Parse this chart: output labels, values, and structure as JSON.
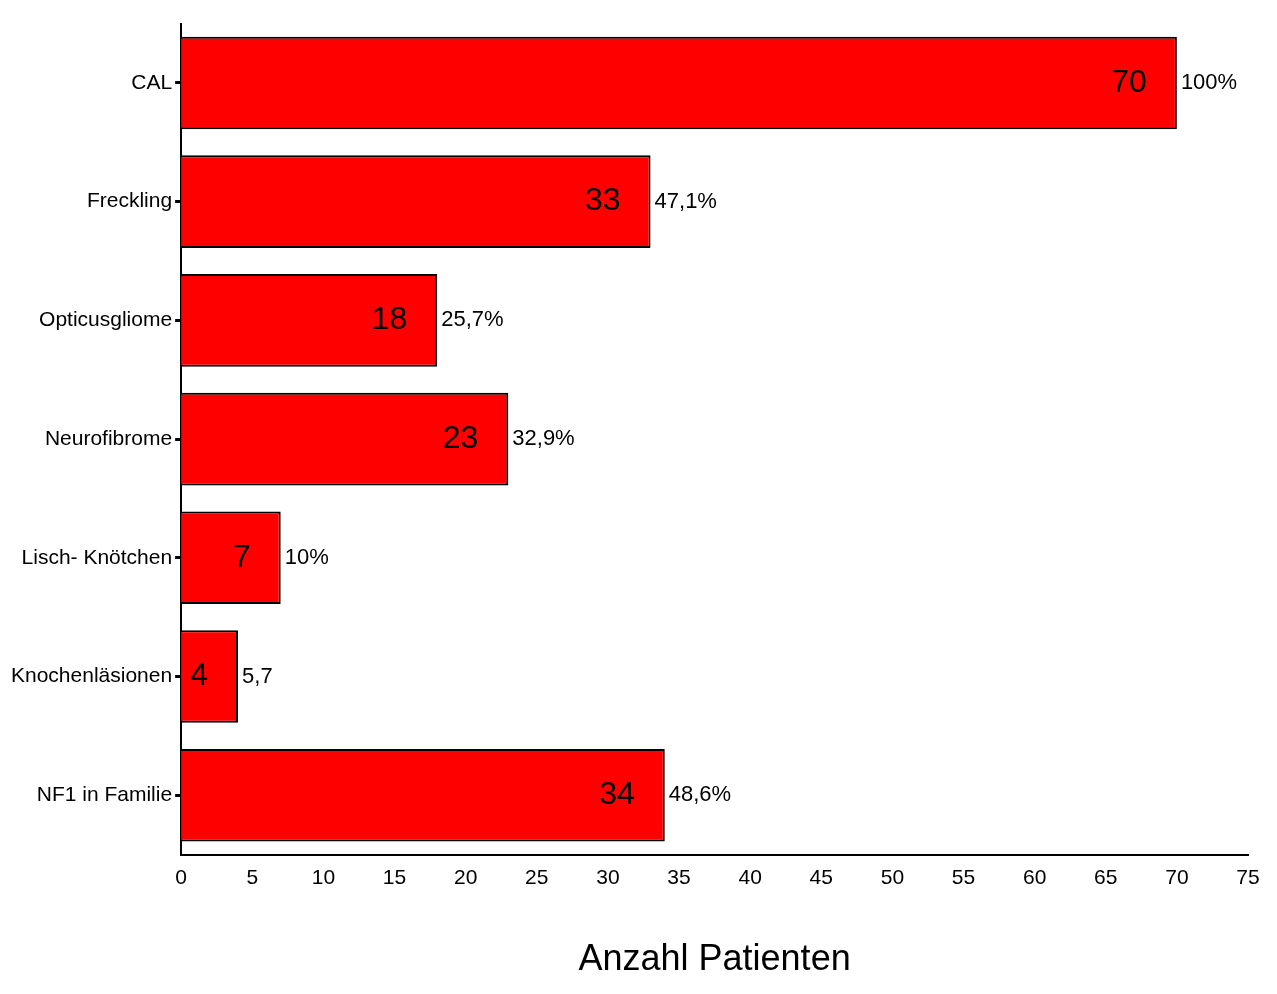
{
  "chart_data": {
    "type": "bar",
    "orientation": "horizontal",
    "xlabel": "Anzahl Patienten",
    "categories": [
      "CAL",
      "Freckling",
      "Opticusgliome",
      "Neurofibrome",
      "Lisch- Knötchen",
      "Knochenläsionen",
      "NF1 in Familie"
    ],
    "values": [
      70,
      33,
      18,
      23,
      7,
      4,
      34
    ],
    "color": "#ff0000",
    "data_labels": true,
    "xlim": [
      0,
      75
    ],
    "xticks": [
      0,
      5,
      10,
      15,
      20,
      25,
      30,
      35,
      40,
      45,
      50,
      55,
      60,
      65,
      70,
      75
    ],
    "grid": false,
    "legend": false,
    "annotations": [
      {
        "text": "100%",
        "x": 70,
        "y": "CAL"
      },
      {
        "text": "47,1%",
        "x": 33,
        "y": "Freckling"
      },
      {
        "text": "25,7%",
        "x": 18,
        "y": "Opticusgliome"
      },
      {
        "text": "32,9%",
        "x": 23,
        "y": "Neurofibrome"
      },
      {
        "text": "10%",
        "x": 7,
        "y": "Lisch- Knötchen"
      },
      {
        "text": "5,7",
        "x": 4,
        "y": "Knochenläsionen"
      },
      {
        "text": "48,6%",
        "x": 34,
        "y": "NF1 in Familie"
      }
    ]
  }
}
